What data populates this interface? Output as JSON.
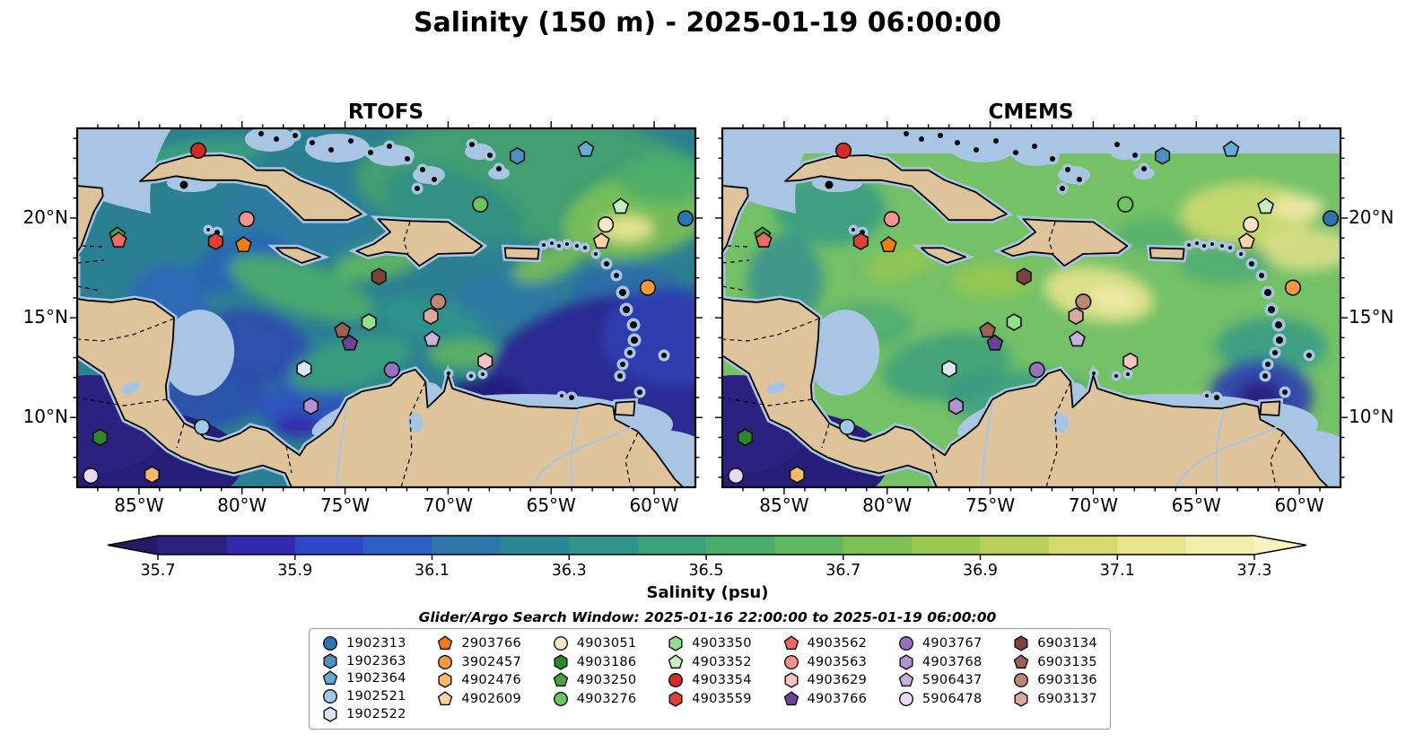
{
  "figure_title": "Salinity (150 m) - 2025-01-19 06:00:00",
  "panels": [
    {
      "title": "RTOFS"
    },
    {
      "title": "CMEMS"
    }
  ],
  "axes": {
    "x_tick_labels": [
      "85°W",
      "80°W",
      "75°W",
      "70°W",
      "65°W",
      "60°W"
    ],
    "y_tick_labels": [
      "20°N",
      "15°N",
      "10°N"
    ]
  },
  "colorbar": {
    "label": "Salinity (psu)",
    "tick_labels": [
      "35.7",
      "35.9",
      "36.1",
      "36.3",
      "36.5",
      "36.7",
      "36.9",
      "37.1",
      "37.3"
    ],
    "band_colors": [
      "#2c2181",
      "#3329ae",
      "#2e46c9",
      "#2d60c3",
      "#2e76ab",
      "#2a8697",
      "#2f9489",
      "#3aa17a",
      "#4aad6c",
      "#60b75f",
      "#7cc055",
      "#9ac84f",
      "#b9cf57",
      "#d4da6e",
      "#e7e48d",
      "#f2edaa"
    ],
    "under_color": "#241a66",
    "over_color": "#f8f2c0"
  },
  "legend": {
    "title": "Glider/Argo Search Window: 2025-01-16 22:00:00 to 2025-01-19 06:00:00"
  },
  "map_style": {
    "land_color": "#dfc39b",
    "coast_color": "#000000",
    "shallow_color": "#a9c5e4",
    "rtofs_base": "#2b7f92",
    "cmems_base": "#74c167",
    "pacific_color": "#261d78",
    "river_color": "#a9c5e4"
  },
  "floats": [
    {
      "id": "1902313",
      "shape": "circle",
      "color": "#2b74b3",
      "fx": 0.984,
      "fy": 0.251,
      "lon": -58.5,
      "lat": 20.0
    },
    {
      "id": "1902363",
      "shape": "hexagon",
      "color": "#4a90c4",
      "fx": 0.712,
      "fy": 0.077,
      "lon": -66.6,
      "lat": 23.1
    },
    {
      "id": "1902364",
      "shape": "pentagon",
      "color": "#66a9d4",
      "fx": 0.823,
      "fy": 0.059,
      "lon": -63.3,
      "lat": 23.4
    },
    {
      "id": "1902521",
      "shape": "circle",
      "color": "#9ecae8",
      "fx": 0.202,
      "fy": 0.832,
      "lon": -81.9,
      "lat": 9.5
    },
    {
      "id": "1902522",
      "shape": "hexagon",
      "color": "#d6e7f5",
      "fx": 0.367,
      "fy": 0.67,
      "lon": -77.0,
      "lat": 12.4
    },
    {
      "id": "2903766",
      "shape": "pentagon",
      "color": "#f07e0e",
      "fx": 0.269,
      "fy": 0.325,
      "lon": -79.9,
      "lat": 18.6
    },
    {
      "id": "3902457",
      "shape": "circle",
      "color": "#fb9a3c",
      "fx": 0.923,
      "fy": 0.444,
      "lon": -60.3,
      "lat": 16.5
    },
    {
      "id": "4902476",
      "shape": "hexagon",
      "color": "#fcb96a",
      "fx": 0.121,
      "fy": 0.965,
      "lon": -84.4,
      "lat": 7.1
    },
    {
      "id": "4902609",
      "shape": "pentagon",
      "color": "#fdd2a5",
      "fx": 0.848,
      "fy": 0.315,
      "lon": -62.6,
      "lat": 18.8
    },
    {
      "id": "4903051",
      "shape": "circle",
      "color": "#f9e4c4",
      "fx": 0.855,
      "fy": 0.268,
      "lon": -62.4,
      "lat": 19.7
    },
    {
      "id": "4903186",
      "shape": "hexagon",
      "color": "#2c862c",
      "fx": 0.037,
      "fy": 0.861,
      "lon": -86.9,
      "lat": 9.0
    },
    {
      "id": "4903250",
      "shape": "pentagon",
      "color": "#46a43c",
      "fx": 0.065,
      "fy": 0.298,
      "lon": -86.1,
      "lat": 19.1
    },
    {
      "id": "4903276",
      "shape": "circle",
      "color": "#6cc561",
      "fx": 0.652,
      "fy": 0.212,
      "lon": -68.4,
      "lat": 20.7
    },
    {
      "id": "4903350",
      "shape": "hexagon",
      "color": "#93e08b",
      "fx": 0.472,
      "fy": 0.54,
      "lon": -73.8,
      "lat": 14.8
    },
    {
      "id": "4903352",
      "shape": "pentagon",
      "color": "#c8f0bf",
      "fx": 0.879,
      "fy": 0.218,
      "lon": -61.6,
      "lat": 20.6
    },
    {
      "id": "4903354",
      "shape": "circle",
      "color": "#d62a28",
      "fx": 0.196,
      "fy": 0.062,
      "lon": -82.1,
      "lat": 23.4
    },
    {
      "id": "4903559",
      "shape": "hexagon",
      "color": "#de3f37",
      "fx": 0.224,
      "fy": 0.315,
      "lon": -81.3,
      "lat": 18.8
    },
    {
      "id": "4903562",
      "shape": "pentagon",
      "color": "#ee6a5d",
      "fx": 0.067,
      "fy": 0.312,
      "lon": -86.0,
      "lat": 18.9
    },
    {
      "id": "4903563",
      "shape": "circle",
      "color": "#f4938d",
      "fx": 0.274,
      "fy": 0.253,
      "lon": -79.8,
      "lat": 20.0
    },
    {
      "id": "4903629",
      "shape": "hexagon",
      "color": "#f8c3c1",
      "fx": 0.66,
      "fy": 0.649,
      "lon": -68.2,
      "lat": 12.8
    },
    {
      "id": "4903766",
      "shape": "pentagon",
      "color": "#6b4199",
      "fx": 0.441,
      "fy": 0.599,
      "lon": -74.8,
      "lat": 13.7
    },
    {
      "id": "4903767",
      "shape": "circle",
      "color": "#9571bf",
      "fx": 0.509,
      "fy": 0.673,
      "lon": -72.7,
      "lat": 12.4
    },
    {
      "id": "4903768",
      "shape": "hexagon",
      "color": "#b193d1",
      "fx": 0.378,
      "fy": 0.774,
      "lon": -76.7,
      "lat": 10.6
    },
    {
      "id": "5906437",
      "shape": "pentagon",
      "color": "#c9afe0",
      "fx": 0.574,
      "fy": 0.588,
      "lon": -70.8,
      "lat": 13.9
    },
    {
      "id": "5906478",
      "shape": "circle",
      "color": "#e8daf3",
      "fx": 0.022,
      "fy": 0.968,
      "lon": -87.3,
      "lat": 7.1
    },
    {
      "id": "6903134",
      "shape": "hexagon",
      "color": "#7a4438",
      "fx": 0.488,
      "fy": 0.413,
      "lon": -73.4,
      "lat": 17.1
    },
    {
      "id": "6903135",
      "shape": "pentagon",
      "color": "#9d6153",
      "fx": 0.429,
      "fy": 0.563,
      "lon": -75.1,
      "lat": 14.4
    },
    {
      "id": "6903136",
      "shape": "circle",
      "color": "#c18577",
      "fx": 0.584,
      "fy": 0.483,
      "lon": -70.5,
      "lat": 15.8
    },
    {
      "id": "6903137",
      "shape": "hexagon",
      "color": "#daa99d",
      "fx": 0.572,
      "fy": 0.523,
      "lon": -70.8,
      "lat": 15.1
    }
  ],
  "chart_data": {
    "type": "heatmap",
    "subtype": "geographic salinity field comparison, two panels sharing one colorbar",
    "title": "Salinity (150 m) - 2025-01-19 06:00:00",
    "panels": [
      "RTOFS",
      "CMEMS"
    ],
    "variable": "Salinity (psu)",
    "depth_m": 150,
    "valid_time": "2025-01-19 06:00:00",
    "search_window": {
      "start": "2025-01-16 22:00:00",
      "end": "2025-01-19 06:00:00"
    },
    "lon_range": [
      -88,
      -58
    ],
    "lat_range": [
      6.5,
      24.5
    ],
    "x_tick_values": [
      -85,
      -80,
      -75,
      -70,
      -65,
      -60
    ],
    "y_tick_values": [
      20,
      15,
      10
    ],
    "colorbar_range": [
      35.7,
      37.3
    ],
    "colorbar_ticks": [
      35.7,
      35.9,
      36.1,
      36.3,
      36.5,
      36.7,
      36.9,
      37.1,
      37.3
    ],
    "colorbar_extend": "both",
    "legend_note": "29 glider/Argo platforms plotted at identical positions on both panels; see floats[]"
  }
}
